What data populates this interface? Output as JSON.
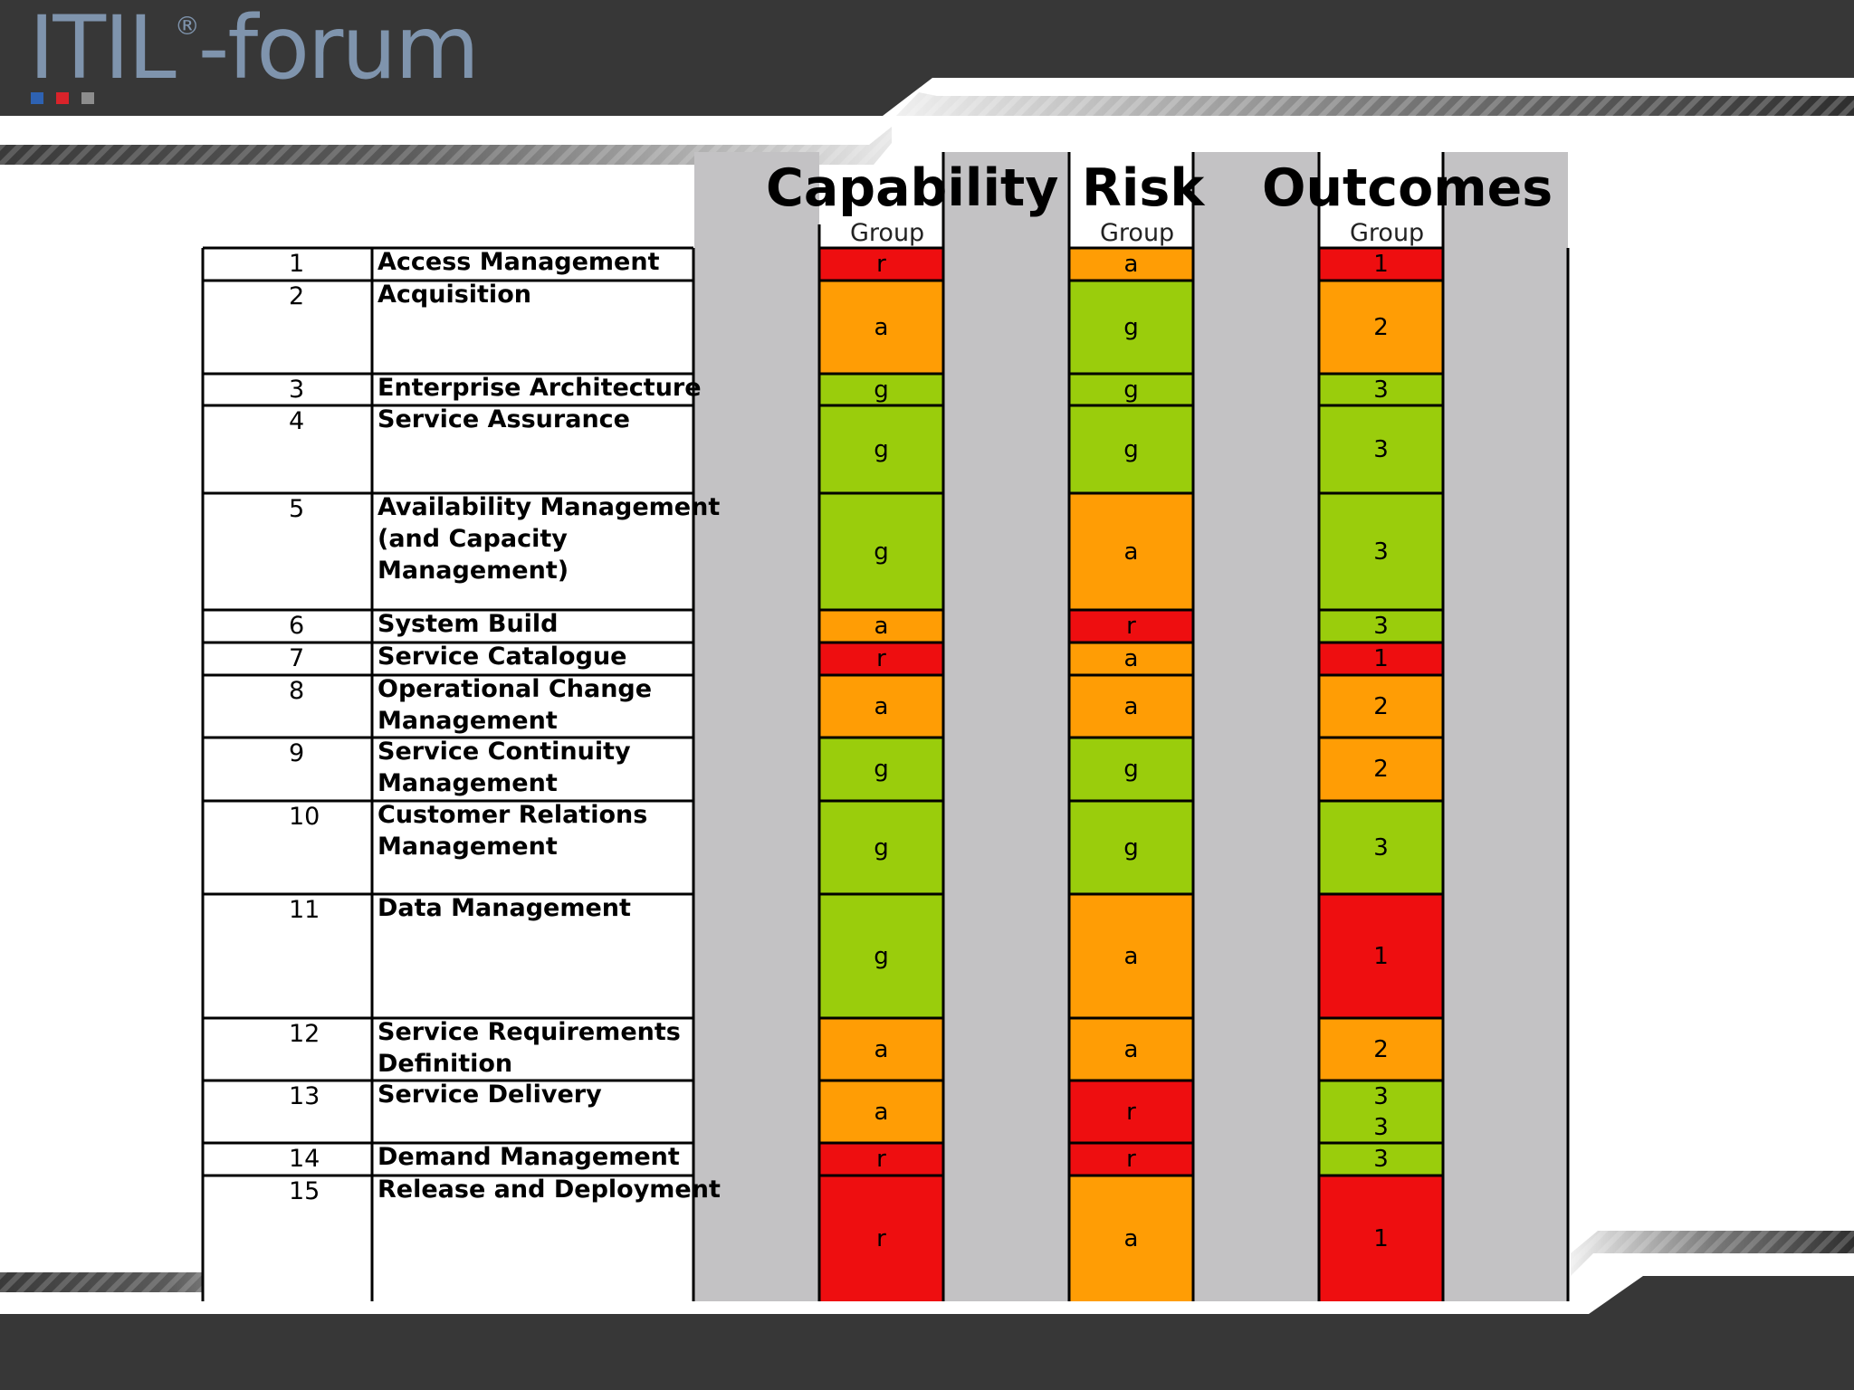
{
  "logo": {
    "text": "ITIL",
    "reg": "®",
    "text2": "-forum"
  },
  "columns": [
    {
      "title": "Capability",
      "sub": "Group"
    },
    {
      "title": "Risk",
      "sub": "Group"
    },
    {
      "title": "Outcomes",
      "sub": "Group"
    }
  ],
  "colors": {
    "r": "#ee0e10",
    "a": "#ff9d05",
    "g": "#9acd0c"
  },
  "rows": [
    {
      "num": "1",
      "name": "Access Management",
      "cap": "r",
      "risk": "a",
      "out": "1"
    },
    {
      "num": "2",
      "name": "Acquisition",
      "cap": "a",
      "risk": "g",
      "out": "2"
    },
    {
      "num": "3",
      "name": "Enterprise Architecture",
      "cap": "g",
      "risk": "g",
      "out": "3"
    },
    {
      "num": "4",
      "name": "Service Assurance",
      "cap": "g",
      "risk": "g",
      "out": "3"
    },
    {
      "num": "5",
      "name": "Availability Management\n(and Capacity\nManagement)",
      "cap": "g",
      "risk": "a",
      "out": "3"
    },
    {
      "num": "6",
      "name": "System Build",
      "cap": "a",
      "risk": "r",
      "out": "3"
    },
    {
      "num": "7",
      "name": "Service Catalogue",
      "cap": "r",
      "risk": "a",
      "out": "1"
    },
    {
      "num": "8",
      "name": "Operational Change\nManagement",
      "cap": "a",
      "risk": "a",
      "out": "2"
    },
    {
      "num": "9",
      "name": "Service Continuity\nManagement",
      "cap": "g",
      "risk": "g",
      "out": "2"
    },
    {
      "num": "10",
      "name": "Customer Relations\nManagement",
      "cap": "g",
      "risk": "g",
      "out": "3"
    },
    {
      "num": "11",
      "name": "Data Management",
      "cap": "g",
      "risk": "a",
      "out": "1"
    },
    {
      "num": "12",
      "name": "Service Requirements\nDefinition",
      "cap": "a",
      "risk": "a",
      "out": "2"
    },
    {
      "num": "13",
      "name": "Service Delivery",
      "cap": "a",
      "risk": "r",
      "out": "3\n3"
    },
    {
      "num": "14",
      "name": "Demand Management",
      "cap": "r",
      "risk": "r",
      "out": "3"
    },
    {
      "num": "15",
      "name": "Release and Deployment",
      "cap": "r",
      "risk": "a",
      "out": "1"
    }
  ]
}
